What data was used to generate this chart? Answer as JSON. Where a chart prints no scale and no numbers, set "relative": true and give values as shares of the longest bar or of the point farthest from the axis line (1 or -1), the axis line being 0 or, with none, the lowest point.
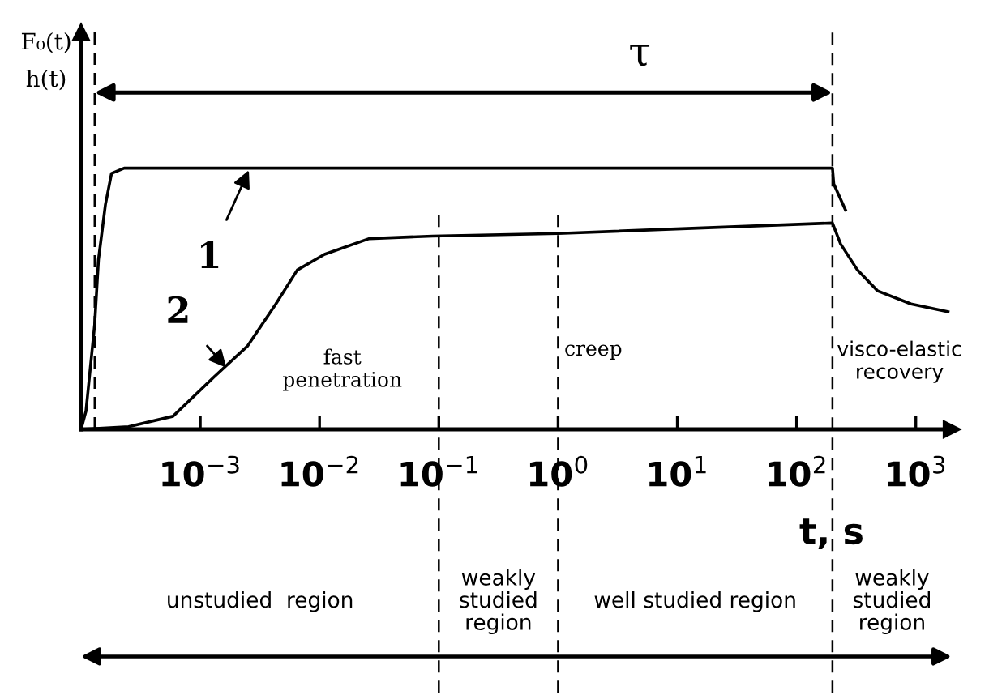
{
  "chart_data": {
    "type": "line",
    "relative": true,
    "log": "x",
    "xlabel": "t, s",
    "ylabel": "F₀(t)\nh(t)",
    "xlim": [
      0.0001,
      2000
    ],
    "xticks": [
      {
        "value": 0.001,
        "label": "10$^{−3}$"
      },
      {
        "value": 0.01,
        "label": "10$^{−2}$"
      },
      {
        "value": 0.1,
        "label": "10$^{−1}$"
      },
      {
        "value": 1,
        "label": "10$^{0}$"
      },
      {
        "value": 10,
        "label": "10$^{1}$"
      },
      {
        "value": 100,
        "label": "10$^{2}$"
      },
      {
        "value": 1000,
        "label": "10$^{3}$"
      }
    ],
    "series": [
      {
        "color": "#000000",
        "x": [
          0.0001,
          0.00011,
          0.00013,
          0.00014,
          0.00016,
          0.00018,
          0.00023,
          200,
          205,
          257
        ],
        "values": [
          0,
          0.07,
          0.4,
          0.65,
          0.86,
          0.98,
          1,
          1,
          0.94,
          0.84
        ]
      },
      {
        "color": "#000000",
        "x": [
          0.0001,
          0.00025,
          0.00059,
          0.0013,
          0.0025,
          0.0043,
          0.0065,
          0.011,
          0.026,
          0.089,
          1,
          200,
          234,
          324,
          479,
          912,
          1862
        ],
        "values": [
          0,
          0.01,
          0.05,
          0.2,
          0.32,
          0.48,
          0.61,
          0.67,
          0.73,
          0.74,
          0.75,
          0.79,
          0.71,
          0.61,
          0.53,
          0.48,
          0.45
        ]
      }
    ],
    "ref_lines": [
      {
        "axis": "x",
        "value": 0.00013,
        "line_style": "dashed"
      },
      {
        "axis": "x",
        "value": 0.1,
        "line_style": "dashed"
      },
      {
        "axis": "x",
        "value": 1,
        "line_style": "dashed"
      },
      {
        "axis": "x",
        "value": 200,
        "line_style": "dashed"
      }
    ],
    "annotations": [
      "τ",
      {
        "text": "1",
        "x": 0.0026,
        "y": 1
      },
      {
        "text": "2",
        "x": 0.0017,
        "y": 0.23
      },
      "fast\npenetration",
      "creep",
      "visco-elastic\nrecovery",
      "unstudied  region",
      "weakly\nstudied\nregion",
      "well studied region",
      "weakly\nstudied\nregion"
    ],
    "grid": false,
    "legend": false,
    "marker": "none",
    "line_style": "solid"
  }
}
